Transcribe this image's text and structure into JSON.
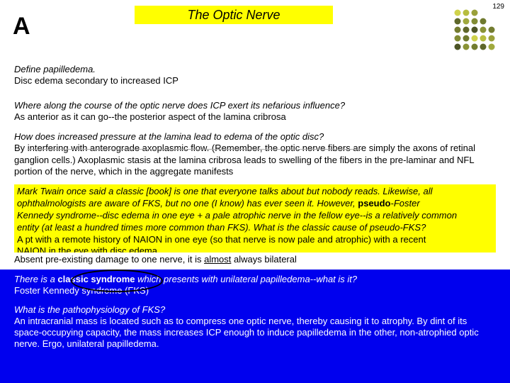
{
  "page_number": "129",
  "title": "The Optic Nerve",
  "letter": "A",
  "dot_colors": [
    "#9aa03a",
    "#b7bd3f",
    "#cfd24b",
    "#6f7a2e",
    "#828c34",
    "#a0a93d",
    "#5e672a",
    "#737c30",
    "#8a9336",
    "#4c5425",
    "#5f672a",
    "#747c30"
  ],
  "q1": "Define papilledema.",
  "a1": "Disc edema secondary to increased ICP",
  "q2": "Where along the course of the optic nerve does ICP exert its nefarious influence?",
  "a2": "As anterior as it can go--the posterior aspect of the lamina cribrosa",
  "q3": "How does increased pressure at the lamina lead to edema of the optic disc?",
  "a3": "By interfering with anterograde axoplasmic flow. (Remember, the optic nerve fibers are simply the axons of retinal ganglion cells.) Axoplasmic stasis at the lamina cribrosa leads to swelling of the fibers in the pre-laminar and NFL portion of the nerve, which in the aggregate manifests",
  "yellow_overlay": {
    "line1": "Mark Twain once said a classic [book] is one that everyone talks about but nobody reads. Likewise, all",
    "line2a": "ophthalmologists are aware of FKS, but no one (I know) has ever seen it. However, ",
    "line2b": "pseudo",
    "line2c": "-Foster",
    "line3": "Kennedy syndrome--disc edema in one eye + a pale atrophic nerve in the fellow eye--is a relatively common",
    "line4": "entity (at least a hundred times more common than FKS). What is the classic cause of pseudo-FKS?",
    "line5": "A pt with a remote history of NAION in one eye (so that nerve is now pale and atrophic) with a recent",
    "line6": "NAION in the eye with disc edema"
  },
  "strip_a": "Absent pre-existing damage to one nerve, it is ",
  "strip_b": "almost",
  "strip_c": " always bilateral",
  "blue": {
    "q1a": "There is a ",
    "q1b": "classic syndrome",
    "q1c": " which presents with unilateral papilledema--what is it?",
    "a1": "Foster Kennedy syndrome (FKS)",
    "q2": "What is the pathophysiology of FKS?",
    "a2": "An intracranial mass is located such as to compress one optic nerve, thereby causing it to atrophy. By dint of its space-occupying capacity, the mass increases ICP enough to induce papilledema in the other, non-atrophied optic nerve. Ergo, unilateral papilledema."
  }
}
